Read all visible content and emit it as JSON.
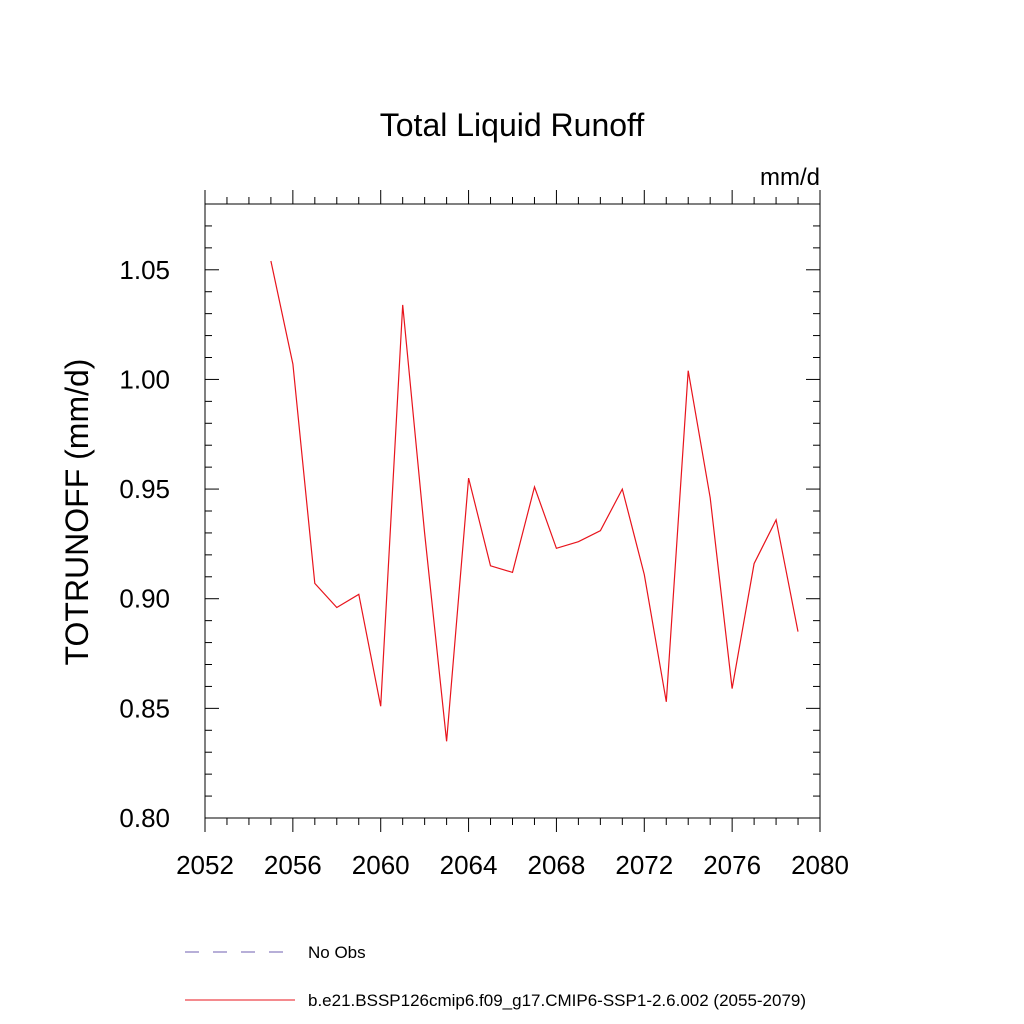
{
  "chart_data": {
    "type": "line",
    "title": "Total Liquid Runoff",
    "units_label": "mm/d",
    "ylabel": "TOTRUNOFF  (mm/d)",
    "xlabel": "",
    "xlim": [
      2052,
      2080
    ],
    "ylim": [
      0.8,
      1.08
    ],
    "x_ticks": [
      2052,
      2056,
      2060,
      2064,
      2068,
      2072,
      2076,
      2080
    ],
    "x_tick_labels": [
      "2052",
      "2056",
      "2060",
      "2064",
      "2068",
      "2072",
      "2076",
      "2080"
    ],
    "y_ticks": [
      0.8,
      0.85,
      0.9,
      0.95,
      1.0,
      1.05
    ],
    "y_tick_labels": [
      "0.80",
      "0.85",
      "0.90",
      "0.95",
      "1.00",
      "1.05"
    ],
    "grid": false,
    "legend_position": "bottom",
    "legend": [
      {
        "label": "No Obs",
        "color": "#6f5fb0",
        "style": "dashed"
      },
      {
        "label": "b.e21.BSSP126cmip6.f09_g17.CMIP6-SSP1-2.6.002 (2055-2079)",
        "color": "#e8141c",
        "style": "solid"
      }
    ],
    "series": [
      {
        "name": "b.e21.BSSP126cmip6.f09_g17.CMIP6-SSP1-2.6.002 (2055-2079)",
        "color": "#e8141c",
        "x": [
          2055,
          2056,
          2057,
          2058,
          2059,
          2060,
          2061,
          2062,
          2063,
          2064,
          2065,
          2066,
          2067,
          2068,
          2069,
          2070,
          2071,
          2072,
          2073,
          2074,
          2075,
          2076,
          2077,
          2078,
          2079
        ],
        "y": [
          1.054,
          1.007,
          0.907,
          0.896,
          0.902,
          0.851,
          1.034,
          0.93,
          0.835,
          0.955,
          0.915,
          0.912,
          0.951,
          0.923,
          0.926,
          0.931,
          0.95,
          0.911,
          0.853,
          1.004,
          0.946,
          0.859,
          0.916,
          0.936,
          0.885
        ]
      }
    ]
  }
}
